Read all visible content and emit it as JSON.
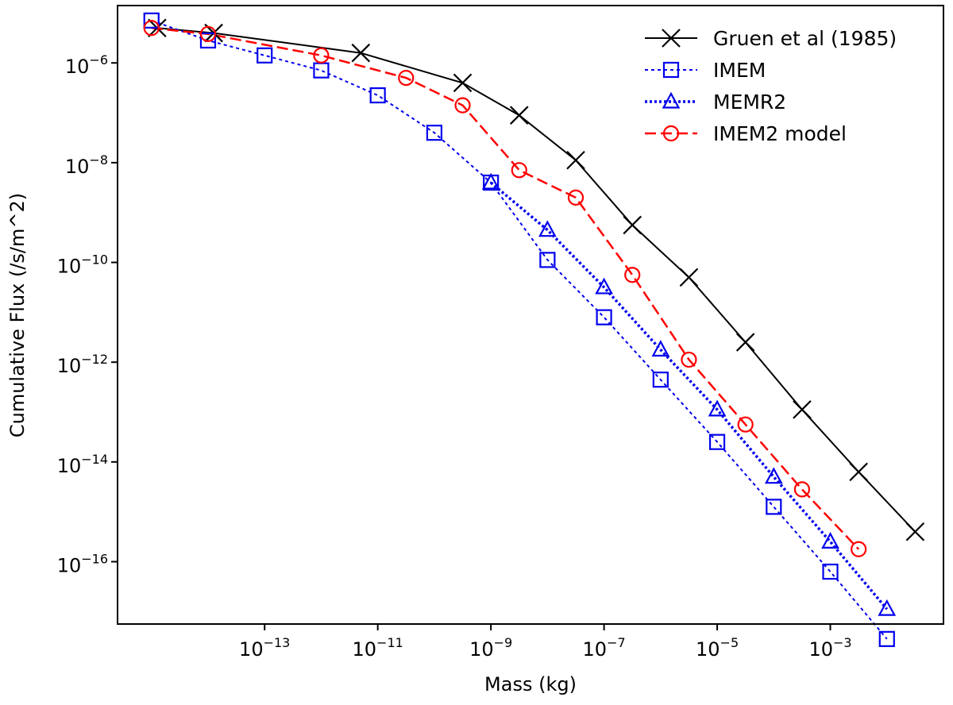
{
  "chart_data": {
    "type": "line",
    "xlabel": "Mass (kg)",
    "ylabel": "Cumulative Flux (/s/m^2)",
    "xscale": "log",
    "yscale": "log",
    "xlim_log10": [
      -15.6,
      -1.0
    ],
    "ylim_log10": [
      -17.25,
      -4.85
    ],
    "xticks": [
      {
        "base": "10",
        "exp": "−13",
        "value_log10": -13
      },
      {
        "base": "10",
        "exp": "−11",
        "value_log10": -11
      },
      {
        "base": "10",
        "exp": "−9",
        "value_log10": -9
      },
      {
        "base": "10",
        "exp": "−7",
        "value_log10": -7
      },
      {
        "base": "10",
        "exp": "−5",
        "value_log10": -5
      },
      {
        "base": "10",
        "exp": "−3",
        "value_log10": -3
      }
    ],
    "yticks": [
      {
        "base": "10",
        "exp": "−6",
        "value_log10": -6
      },
      {
        "base": "10",
        "exp": "−8",
        "value_log10": -8
      },
      {
        "base": "10",
        "exp": "−10",
        "value_log10": -10
      },
      {
        "base": "10",
        "exp": "−12",
        "value_log10": -12
      },
      {
        "base": "10",
        "exp": "−14",
        "value_log10": -14
      },
      {
        "base": "10",
        "exp": "−16",
        "value_log10": -16
      }
    ],
    "legend_position": "top-right",
    "series": [
      {
        "name": "Gruen et al (1985)",
        "color": "#000000",
        "marker": "x",
        "linestyle": "solid",
        "log10_x": [
          -14.9,
          -13.9,
          -11.3,
          -9.5,
          -8.5,
          -7.5,
          -6.5,
          -5.5,
          -4.5,
          -3.5,
          -2.5,
          -1.5
        ],
        "log10_y": [
          -5.3,
          -5.4,
          -5.8,
          -6.4,
          -7.05,
          -7.95,
          -9.25,
          -10.3,
          -11.6,
          -12.95,
          -14.2,
          -15.4
        ]
      },
      {
        "name": "IMEM",
        "color": "#0000ee",
        "marker": "square",
        "linestyle": "dotted",
        "log10_x": [
          -15.0,
          -14.0,
          -13.0,
          -12.0,
          -11.0,
          -10.0,
          -9.0,
          -8.0,
          -7.0,
          -6.0,
          -5.0,
          -4.0,
          -3.0,
          -2.0
        ],
        "log10_y": [
          -5.15,
          -5.55,
          -5.85,
          -6.15,
          -6.65,
          -7.4,
          -8.4,
          -9.95,
          -11.1,
          -12.35,
          -13.6,
          -14.9,
          -16.2,
          -17.55
        ]
      },
      {
        "name": "MEMR2",
        "color": "#0000ee",
        "marker": "triangle",
        "linestyle": "densely-dotted",
        "log10_x": [
          -9.0,
          -8.0,
          -7.0,
          -6.0,
          -5.0,
          -4.0,
          -3.0,
          -2.0
        ],
        "log10_y": [
          -8.4,
          -9.35,
          -10.5,
          -11.75,
          -12.95,
          -14.3,
          -15.6,
          -16.95
        ]
      },
      {
        "name": "IMEM2 model",
        "color": "#ff0000",
        "marker": "circle",
        "linestyle": "dashed",
        "log10_x": [
          -15.0,
          -14.0,
          -12.0,
          -10.5,
          -9.5,
          -8.5,
          -7.5,
          -6.5,
          -5.5,
          -4.5,
          -3.5,
          -2.5
        ],
        "log10_y": [
          -5.3,
          -5.42,
          -5.85,
          -6.3,
          -6.85,
          -8.15,
          -8.7,
          -10.25,
          -11.95,
          -13.25,
          -14.55,
          -15.75
        ]
      }
    ]
  }
}
